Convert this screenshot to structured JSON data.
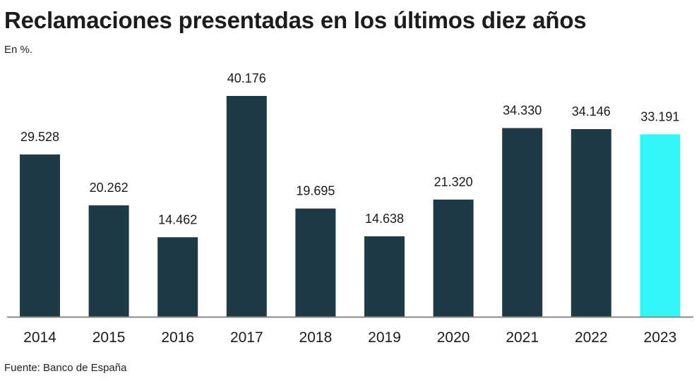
{
  "title": "Reclamaciones presentadas en los últimos diez años",
  "subtitle": "En %.",
  "source": "Fuente: Banco de España",
  "colors": {
    "bar": "#1e3a44",
    "highlight": "#33f7f7",
    "axis": "#888888"
  },
  "chart_data": {
    "type": "bar",
    "title": "Reclamaciones presentadas en los últimos diez años",
    "xlabel": "",
    "ylabel": "",
    "categories": [
      "2014",
      "2015",
      "2016",
      "2017",
      "2018",
      "2019",
      "2020",
      "2021",
      "2022",
      "2023"
    ],
    "values": [
      29528,
      20262,
      14462,
      40176,
      19695,
      14638,
      21320,
      34330,
      34146,
      33191
    ],
    "value_labels": [
      "29.528",
      "20.262",
      "14.462",
      "40.176",
      "19.695",
      "14.638",
      "21.320",
      "34.330",
      "34.146",
      "33.191"
    ],
    "highlight_index": 9,
    "ylim": [
      0,
      40176
    ],
    "grid": false,
    "legend": "none"
  }
}
